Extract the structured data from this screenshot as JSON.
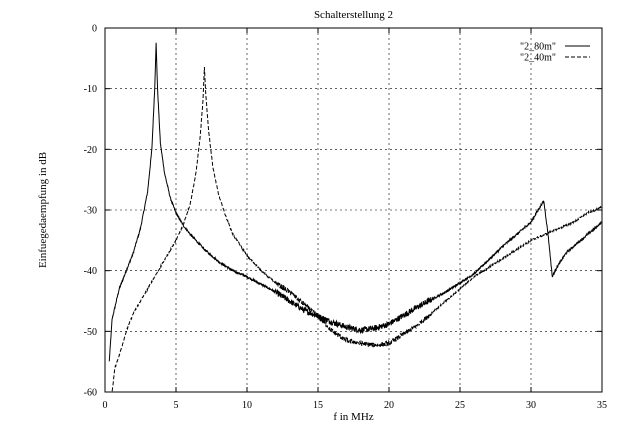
{
  "chart_data": {
    "type": "line",
    "title": "Schalterstellung 2",
    "xlabel": "f in MHz",
    "ylabel": "Einfuegedaempfung in dB",
    "xlim": [
      0,
      35
    ],
    "ylim": [
      -60,
      0
    ],
    "xticks": [
      0,
      5,
      10,
      15,
      20,
      25,
      30,
      35
    ],
    "yticks": [
      0,
      -10,
      -20,
      -30,
      -40,
      -50,
      -60
    ],
    "grid": true,
    "legend_position": "top-right",
    "series": [
      {
        "name": "\"2_80m\"",
        "style": "solid",
        "color": "#000000",
        "noise": 0.5,
        "x": [
          0.3,
          0.5,
          1.0,
          1.5,
          2.0,
          2.5,
          3.0,
          3.3,
          3.5,
          3.6,
          3.7,
          3.9,
          4.2,
          4.6,
          5.0,
          5.5,
          6.0,
          7.0,
          8.0,
          9.0,
          10.0,
          12.0,
          14.0,
          16.0,
          17.0,
          18.0,
          19.0,
          20.0,
          22.0,
          24.0,
          26.0,
          28.0,
          29.0,
          30.0,
          30.5,
          30.9,
          31.2,
          31.5,
          31.8,
          32.5,
          33.5,
          35.0
        ],
        "y": [
          -55,
          -48,
          -43,
          -40,
          -37,
          -33,
          -27,
          -20,
          -10,
          -2.5,
          -10,
          -19,
          -24,
          -28,
          -30.5,
          -32.5,
          -34,
          -36.5,
          -38.5,
          -40,
          -41,
          -43.5,
          -46.5,
          -48.5,
          -49.3,
          -49.8,
          -49.5,
          -48.8,
          -46,
          -43.5,
          -40.5,
          -36,
          -34,
          -32,
          -30,
          -28.5,
          -34,
          -41,
          -39.5,
          -37,
          -35,
          -32
        ]
      },
      {
        "name": "\"2_40m\"",
        "style": "dashed",
        "color": "#000000",
        "noise": 0.4,
        "x": [
          0.5,
          0.7,
          1.0,
          1.5,
          2.0,
          3.0,
          4.0,
          5.0,
          5.5,
          6.0,
          6.4,
          6.7,
          6.9,
          7.0,
          7.1,
          7.3,
          7.6,
          8.0,
          8.5,
          9.0,
          10.0,
          11.0,
          12.0,
          13.0,
          14.0,
          15.0,
          16.0,
          17.0,
          18.0,
          19.0,
          20.0,
          21.0,
          22.0,
          24.0,
          26.0,
          28.0,
          30.0,
          32.0,
          33.0,
          34.0,
          35.0
        ],
        "y": [
          -60,
          -56,
          -54,
          -50,
          -47,
          -43,
          -39,
          -35,
          -32.5,
          -29,
          -24,
          -18,
          -12,
          -6.5,
          -11,
          -17,
          -23,
          -27.5,
          -31,
          -34,
          -37.5,
          -40,
          -42,
          -43.5,
          -45.5,
          -47.5,
          -50,
          -51.5,
          -52,
          -52.3,
          -52,
          -50.5,
          -49,
          -45,
          -41,
          -38,
          -35,
          -33,
          -32,
          -30.5,
          -29.5
        ]
      }
    ]
  }
}
